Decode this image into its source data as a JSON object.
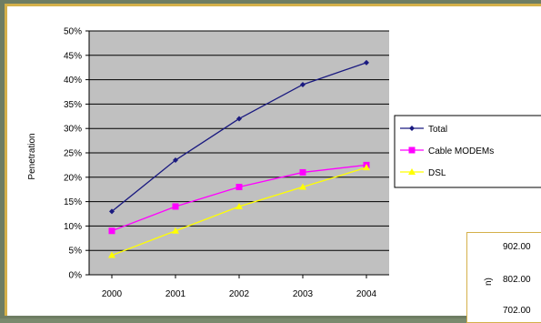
{
  "colors": {
    "plot_bg": "#c0c0c0",
    "grid": "#000000",
    "total": "#1a1a80",
    "cable": "#ff00ff",
    "dsl": "#ffff00"
  },
  "chart_data": {
    "type": "line",
    "title": "",
    "xlabel": "",
    "ylabel": "Penetration",
    "categories": [
      "2000",
      "2001",
      "2002",
      "2003",
      "2004"
    ],
    "ylim": [
      0,
      50
    ],
    "yticks": [
      "0%",
      "5%",
      "10%",
      "15%",
      "20%",
      "25%",
      "30%",
      "35%",
      "40%",
      "45%",
      "50%"
    ],
    "grid": true,
    "legend_position": "right",
    "series": [
      {
        "name": "Total",
        "values": [
          13,
          23.5,
          32,
          39,
          43.5
        ],
        "color": "#1a1a80",
        "marker": "diamond"
      },
      {
        "name": "Cable MODEMs",
        "values": [
          9,
          14,
          18,
          21,
          22.5
        ],
        "color": "#ff00ff",
        "marker": "square"
      },
      {
        "name": "DSL",
        "values": [
          4,
          9,
          14,
          18,
          22
        ],
        "color": "#ffff00",
        "marker": "triangle"
      }
    ]
  },
  "inset": {
    "axis_label": "n)",
    "values": [
      "902.00",
      "802.00",
      "702.00"
    ]
  }
}
